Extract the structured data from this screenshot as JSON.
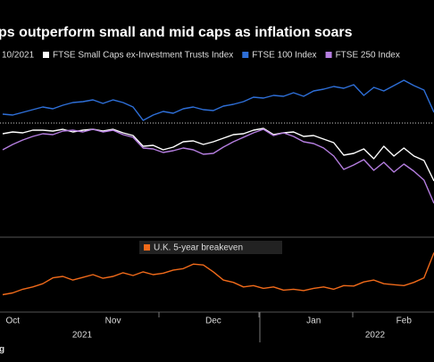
{
  "chart_data": {
    "type": "line",
    "title": "ps outperform small and mid caps as inflation soars",
    "subtitle": "10/2021",
    "source": "g",
    "categories": [
      null,
      "Oct",
      null,
      null,
      null,
      null,
      null,
      null,
      null,
      null,
      null,
      "Nov",
      null,
      null,
      null,
      null,
      null,
      null,
      null,
      null,
      null,
      "Dec",
      null,
      null,
      null,
      null,
      null,
      null,
      null,
      null,
      null,
      "Jan",
      null,
      null,
      null,
      null,
      null,
      null,
      null,
      null,
      "Feb",
      null,
      null,
      null
    ],
    "year_labels": [
      "2021",
      "2022"
    ],
    "series": [
      {
        "name": "FTSE Small Caps ex-Investment Trusts Index",
        "color": "#ffffff",
        "values": [
          98.8,
          99.0,
          98.9,
          99.2,
          99.2,
          99.1,
          99.3,
          99.0,
          99.2,
          99.3,
          99.1,
          99.3,
          98.9,
          98.6,
          97.4,
          97.5,
          97.0,
          97.3,
          97.9,
          98.0,
          97.6,
          97.9,
          98.3,
          98.7,
          98.8,
          99.2,
          99.4,
          98.7,
          98.9,
          99.0,
          98.5,
          98.6,
          98.2,
          97.8,
          96.4,
          96.6,
          97.1,
          96.0,
          97.4,
          96.3,
          97.2,
          96.3,
          95.8,
          93.5
        ]
      },
      {
        "name": "FTSE 100 Index",
        "color": "#2e6fd8",
        "values": [
          101.0,
          100.9,
          101.2,
          101.5,
          101.8,
          101.6,
          102.0,
          102.3,
          102.4,
          102.6,
          102.2,
          102.6,
          102.3,
          101.8,
          100.3,
          100.9,
          101.3,
          101.1,
          101.6,
          101.8,
          101.5,
          101.4,
          101.9,
          102.1,
          102.4,
          102.9,
          102.8,
          103.1,
          103.0,
          103.4,
          103.0,
          103.6,
          103.8,
          104.1,
          103.9,
          104.3,
          103.1,
          104.0,
          103.6,
          104.2,
          104.8,
          104.2,
          103.7,
          101.2
        ]
      },
      {
        "name": "FTSE 250 Index",
        "color": "#b57ee0",
        "values": [
          97.0,
          97.6,
          98.1,
          98.5,
          98.8,
          98.7,
          99.1,
          99.2,
          99.0,
          99.3,
          99.0,
          99.2,
          98.7,
          98.4,
          97.2,
          97.1,
          96.7,
          96.9,
          97.2,
          97.0,
          96.5,
          96.6,
          97.3,
          97.9,
          98.4,
          98.9,
          99.3,
          98.6,
          98.9,
          98.5,
          97.9,
          97.7,
          97.2,
          96.3,
          94.8,
          95.3,
          95.9,
          94.7,
          95.6,
          94.5,
          95.4,
          94.6,
          93.6,
          91.0
        ]
      },
      {
        "name": "U.K. 5-year breakeven",
        "color": "#f06a1a",
        "axis": "y2",
        "values": [
          3.38,
          3.42,
          3.5,
          3.55,
          3.62,
          3.75,
          3.78,
          3.7,
          3.76,
          3.82,
          3.74,
          3.78,
          3.86,
          3.8,
          3.88,
          3.82,
          3.85,
          3.92,
          3.95,
          4.05,
          4.03,
          3.88,
          3.7,
          3.65,
          3.55,
          3.58,
          3.52,
          3.55,
          3.48,
          3.5,
          3.47,
          3.52,
          3.55,
          3.5,
          3.58,
          3.57,
          3.66,
          3.7,
          3.62,
          3.6,
          3.58,
          3.65,
          3.75,
          4.3
        ]
      }
    ],
    "reference_line": 100,
    "ylim": [
      87.3,
      106.6
    ],
    "y2lim": [
      3.0,
      4.6
    ]
  }
}
